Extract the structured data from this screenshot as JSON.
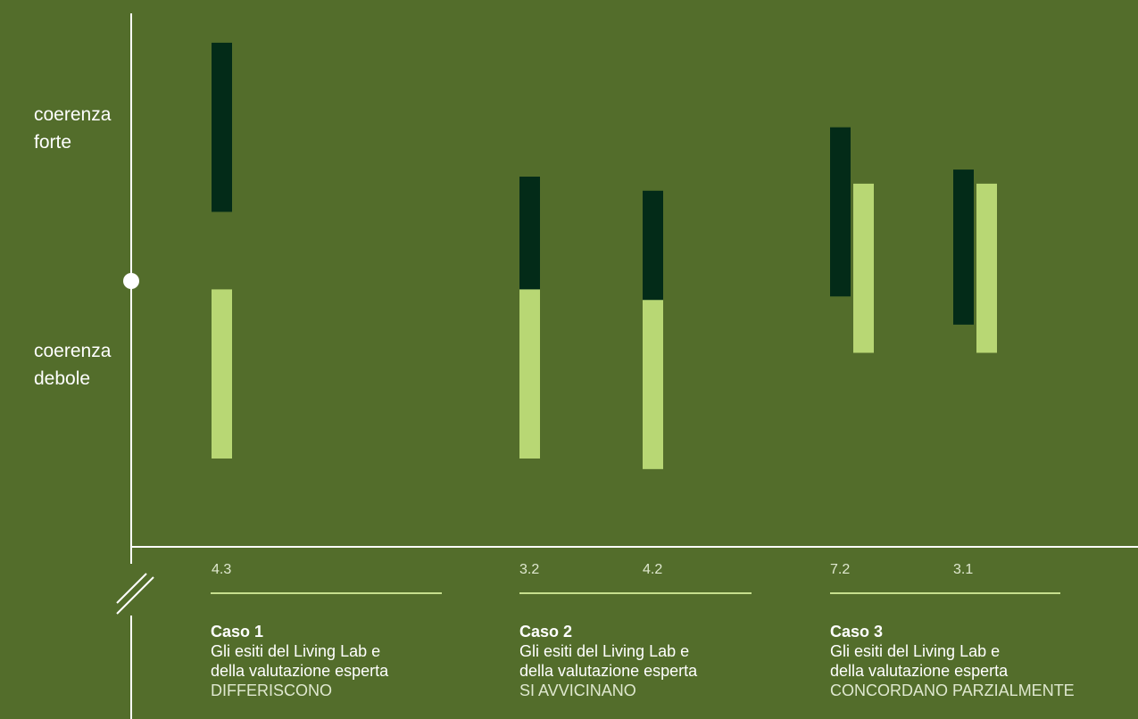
{
  "colors": {
    "background": "#536d2b",
    "living_lab": "#032b18",
    "expert": "#b8d774",
    "axis": "#ffffff",
    "underline": "#c7df8e"
  },
  "y_axis_labels": {
    "strong": "coerenza\nforte",
    "weak": "coerenza\ndebole"
  },
  "chart_data": {
    "type": "bar",
    "categories": [
      "4.3",
      "3.2",
      "4.2",
      "7.2",
      "3.1"
    ],
    "ylim": [
      0,
      6
    ],
    "series": [
      {
        "color": "#032b18",
        "ranges": [
          [
            3.5,
            5.9
          ],
          [
            1.6,
            4.0
          ],
          [
            1.45,
            3.8
          ],
          [
            2.3,
            4.7
          ],
          [
            1.9,
            4.1
          ]
        ]
      },
      {
        "color": "#b8d774",
        "ranges": [
          [
            0.0,
            2.4
          ],
          [
            0.0,
            2.4
          ],
          [
            -0.15,
            2.25
          ],
          [
            1.5,
            3.9
          ],
          [
            1.5,
            3.9
          ]
        ]
      }
    ],
    "annotations": [
      "coerenza forte",
      "coerenza debole"
    ],
    "grid": false
  },
  "cases": [
    {
      "title": "Caso 1",
      "desc": "Gli esiti del Living Lab e\ndella valutazione esperta",
      "verdict": "DIFFERISCONO"
    },
    {
      "title": "Caso 2",
      "desc": "Gli esiti del Living Lab e\ndella valutazione esperta",
      "verdict": "SI AVVICINANO"
    },
    {
      "title": "Caso 3",
      "desc": "Gli esiti del Living Lab e\ndella valutazione esperta",
      "verdict": "CONCORDANO PARZIALMENTE"
    }
  ]
}
